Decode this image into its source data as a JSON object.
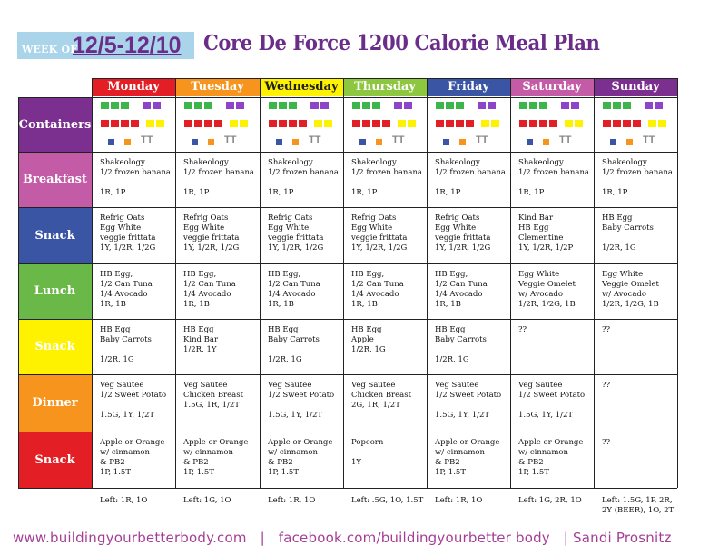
{
  "header": {
    "week_label": "WEEK OF:",
    "week_dates": "12/5-12/10",
    "title": "Core De Force 1200 Calorie Meal Plan"
  },
  "days": [
    {
      "name": "Monday",
      "color": "#e31e24"
    },
    {
      "name": "Tuesday",
      "color": "#f7941d"
    },
    {
      "name": "Wednesday",
      "color": "#fff200"
    },
    {
      "name": "Thursday",
      "color": "#8dc63f"
    },
    {
      "name": "Friday",
      "color": "#3955a4"
    },
    {
      "name": "Saturday",
      "color": "#c45ba6"
    },
    {
      "name": "Sunday",
      "color": "#7b2f8e"
    }
  ],
  "rows": [
    {
      "name": "Containers",
      "color": "#7b2f8e"
    },
    {
      "name": "Breakfast",
      "color": "#c45ba6"
    },
    {
      "name": "Snack",
      "color": "#3955a4"
    },
    {
      "name": "Lunch",
      "color": "#6ab847"
    },
    {
      "name": "Snack",
      "color": "#fff200"
    },
    {
      "name": "Dinner",
      "color": "#f7941d"
    },
    {
      "name": "Snack",
      "color": "#e31e24"
    }
  ],
  "container_colors": {
    "green": "#3cb54a",
    "purple": "#8e44c8",
    "red": "#e31e24",
    "yellow": "#fff200",
    "blue": "#3955a4",
    "orange": "#f7941d"
  },
  "container_tsp": "TT",
  "meals": {
    "breakfast": [
      "Shakeology\n1/2 frozen banana\n\n1R, 1P",
      "Shakeology\n1/2 frozen banana\n\n1R, 1P",
      "Shakeology\n1/2 frozen banana\n\n1R, 1P",
      "Shakeology\n1/2 frozen banana\n\n1R, 1P",
      "Shakeology\n1/2 frozen banana\n\n1R, 1P",
      "Shakeology\n1/2 frozen banana\n\n1R, 1P",
      "Shakeology\n1/2 frozen banana\n\n1R, 1P"
    ],
    "snack1": [
      "Refrig Oats\nEgg White\nveggie frittata\n1Y, 1/2R, 1/2G",
      "Refrig Oats\nEgg White\nveggie frittata\n1Y, 1/2R, 1/2G",
      "Refrig Oats\nEgg White\nveggie frittata\n1Y, 1/2R, 1/2G",
      "Refrig Oats\nEgg White\nveggie frittata\n1Y, 1/2R, 1/2G",
      "Refrig Oats\nEgg White\nveggie frittata\n1Y, 1/2R, 1/2G",
      "Kind Bar\nHB Egg\nClementine\n1Y, 1/2R, 1/2P",
      "HB Egg\nBaby Carrots\n\n1/2R, 1G"
    ],
    "lunch": [
      "HB Egg,\n1/2 Can Tuna\n1/4 Avocado\n1R, 1B",
      "HB Egg,\n1/2 Can Tuna\n1/4 Avocado\n1R, 1B",
      "HB Egg,\n1/2 Can Tuna\n1/4 Avocado\n1R, 1B",
      "HB Egg,\n1/2 Can Tuna\n1/4 Avocado\n1R, 1B",
      "HB Egg,\n1/2 Can Tuna\n1/4 Avocado\n1R, 1B",
      "Egg White\nVeggie Omelet\nw/ Avocado\n1/2R, 1/2G, 1B",
      "Egg White\nVeggie Omelet\nw/ Avocado\n1/2R, 1/2G, 1B"
    ],
    "snack2": [
      "HB Egg\nBaby Carrots\n\n1/2R, 1G",
      "HB Egg\nKind Bar\n1/2R, 1Y",
      "HB Egg\nBaby Carrots\n\n1/2R, 1G",
      "HB Egg\nApple\n1/2R, 1G",
      "HB Egg\nBaby Carrots\n\n1/2R, 1G",
      "??",
      "??"
    ],
    "dinner": [
      "Veg Sautee\n1/2 Sweet Potato\n\n1.5G, 1Y, 1/2T",
      "Veg Sautee\nChicken Breast\n1.5G, 1R, 1/2T",
      "Veg Sautee\n1/2 Sweet Potato\n\n1.5G, 1Y, 1/2T",
      "Veg Sautee\nChicken Breast\n2G, 1R, 1/2T",
      "Veg Sautee\n1/2 Sweet Potato\n\n1.5G, 1Y, 1/2T",
      "Veg Sautee\n1/2 Sweet Potato\n\n1.5G, 1Y, 1/2T",
      "??"
    ],
    "snack3": [
      "Apple or Orange\nw/ cinnamon\n& PB2\n1P, 1.5T",
      "Apple or Orange\nw/ cinnamon\n& PB2\n1P, 1.5T",
      "Apple or Orange\nw/ cinnamon\n& PB2\n1P, 1.5T",
      "Popcorn\n\n1Y",
      "Apple or Orange\nw/ cinnamon\n& PB2\n1P, 1.5T",
      "Apple or Orange\nw/ cinnamon\n& PB2\n1P, 1.5T",
      "??"
    ]
  },
  "leftovers": [
    "Left: 1R, 1O",
    "Left: 1G, 1O",
    "Left: 1R, 1O",
    "Left: .5G, 1O, 1.5T",
    "Left: 1R, 1O",
    "Left: 1G, 2R, 1O",
    "Left: 1.5G, 1P, 2R,\n2Y (BEER), 1O, 2T"
  ],
  "footer": "www.buildingyourbetterbody.com   |   facebook.com/buildingyourbetter body   | Sandi Prosnitz"
}
